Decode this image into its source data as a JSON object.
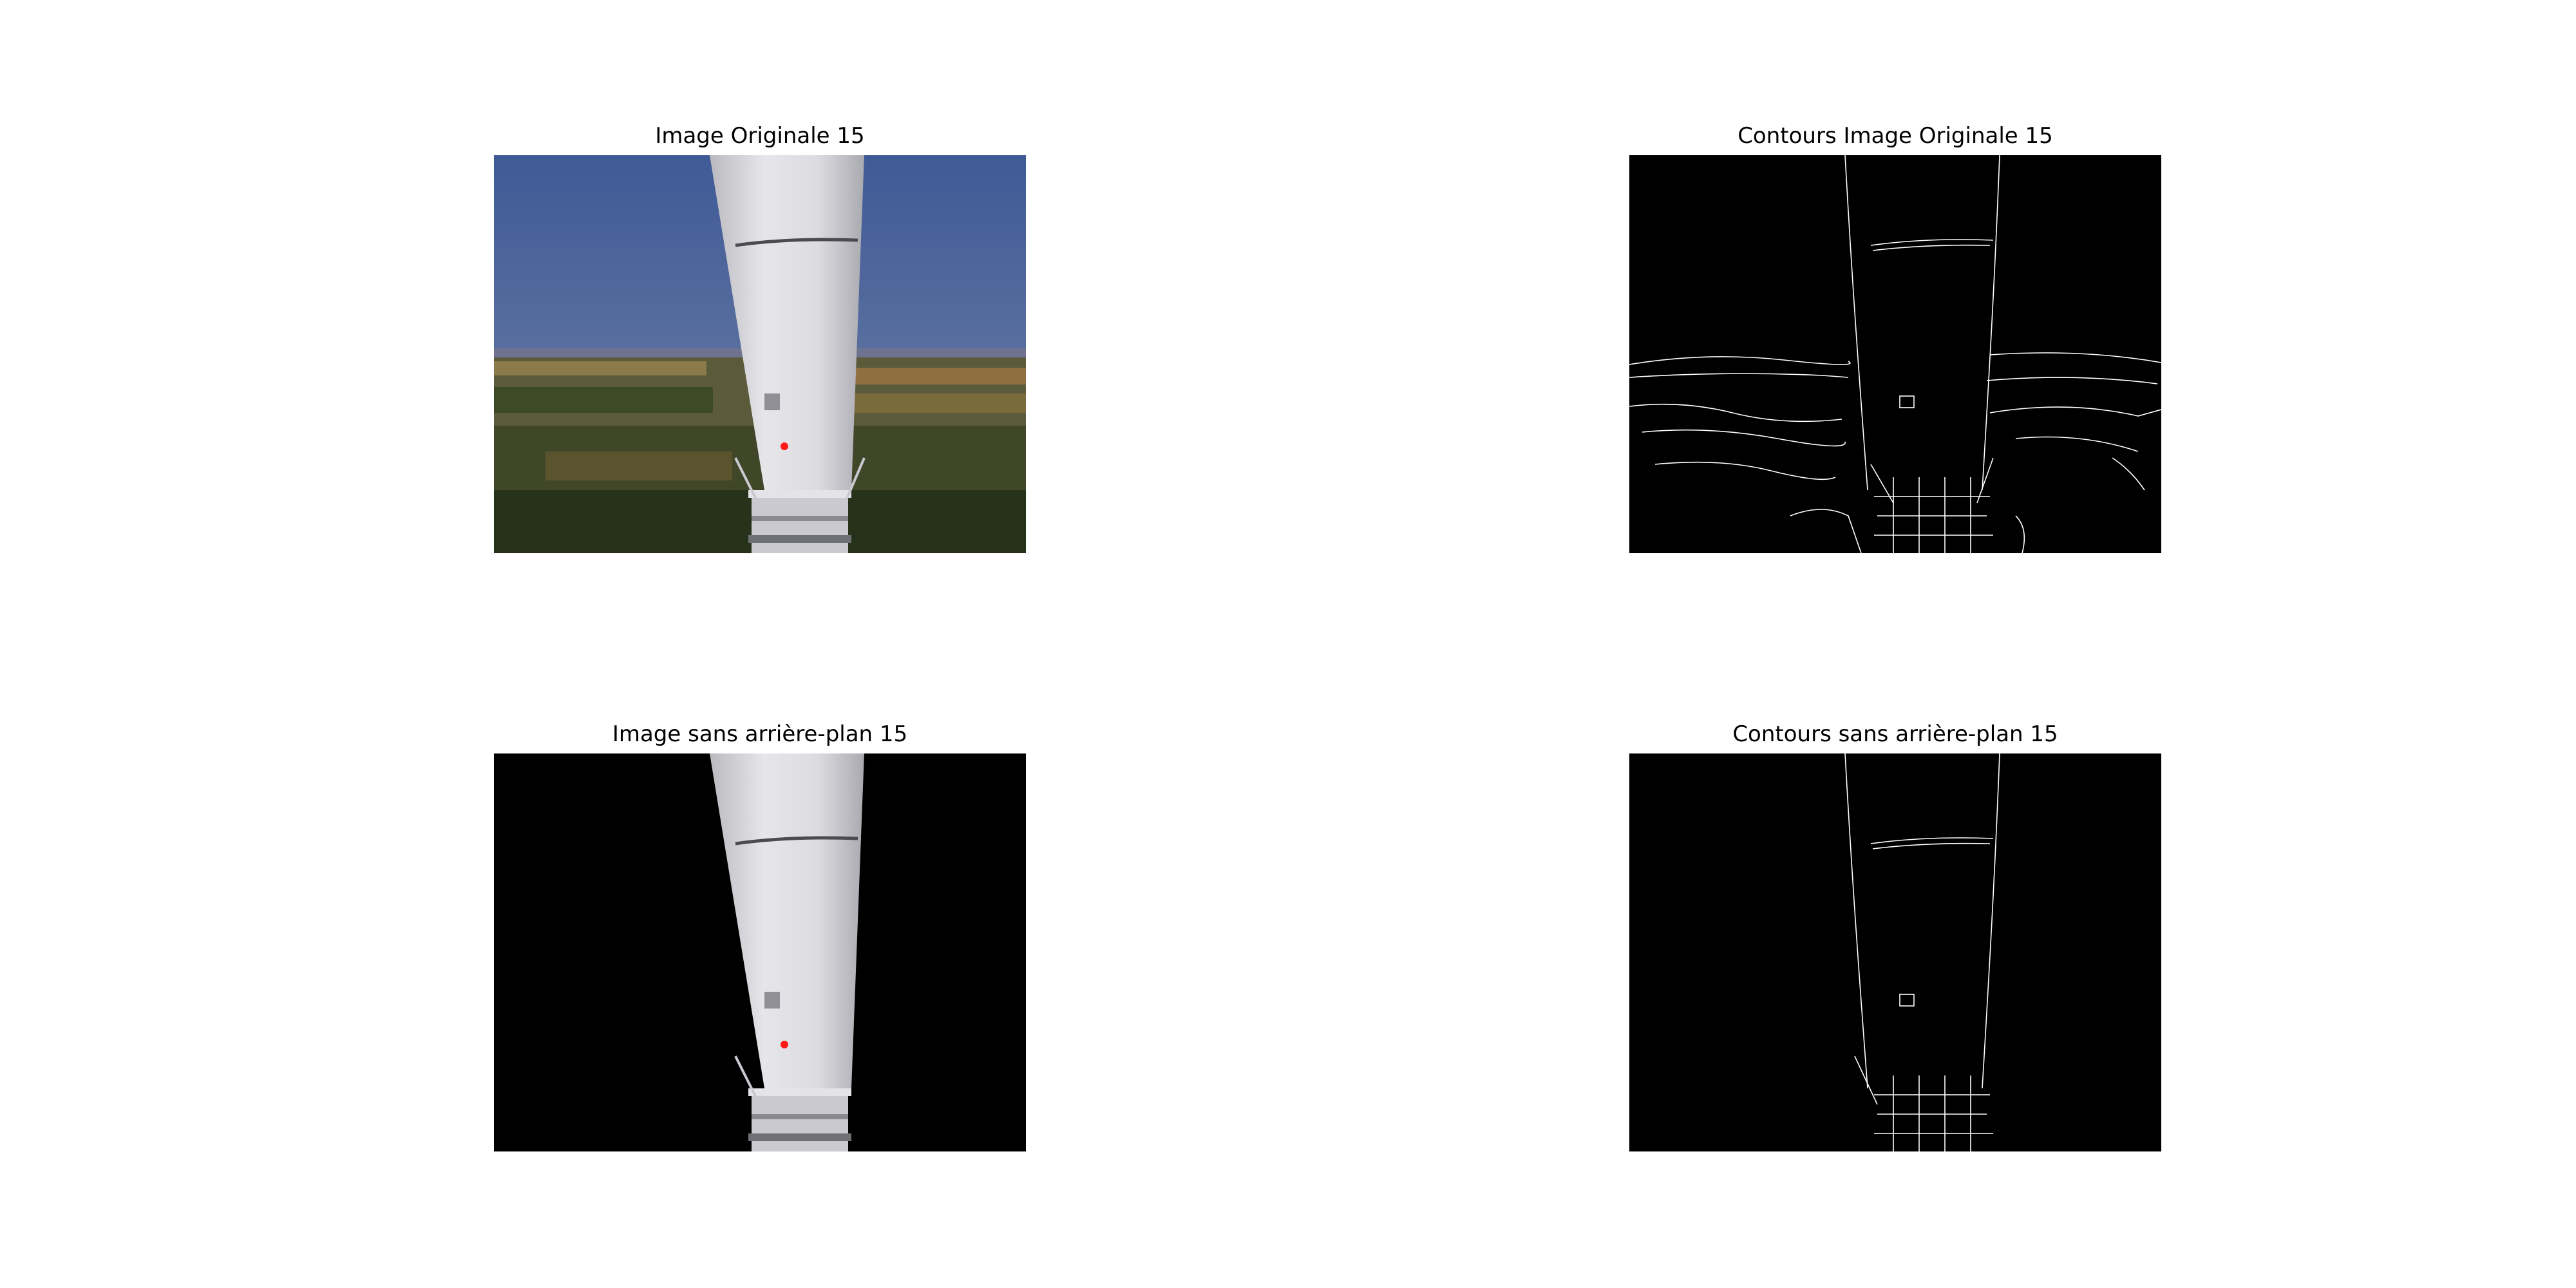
{
  "figure": {
    "panels": [
      {
        "title": "Image Originale 15"
      },
      {
        "title": "Contours Image Originale 15"
      },
      {
        "title": "Image sans arrière-plan 15"
      },
      {
        "title": "Contours sans arrière-plan 15"
      }
    ],
    "colors": {
      "background": "#ffffff",
      "sky": "#4a6496",
      "tower": "#d9d9dd",
      "marker": "#ff1a1a",
      "edges": "#ffffff",
      "mask": "#000000"
    }
  }
}
